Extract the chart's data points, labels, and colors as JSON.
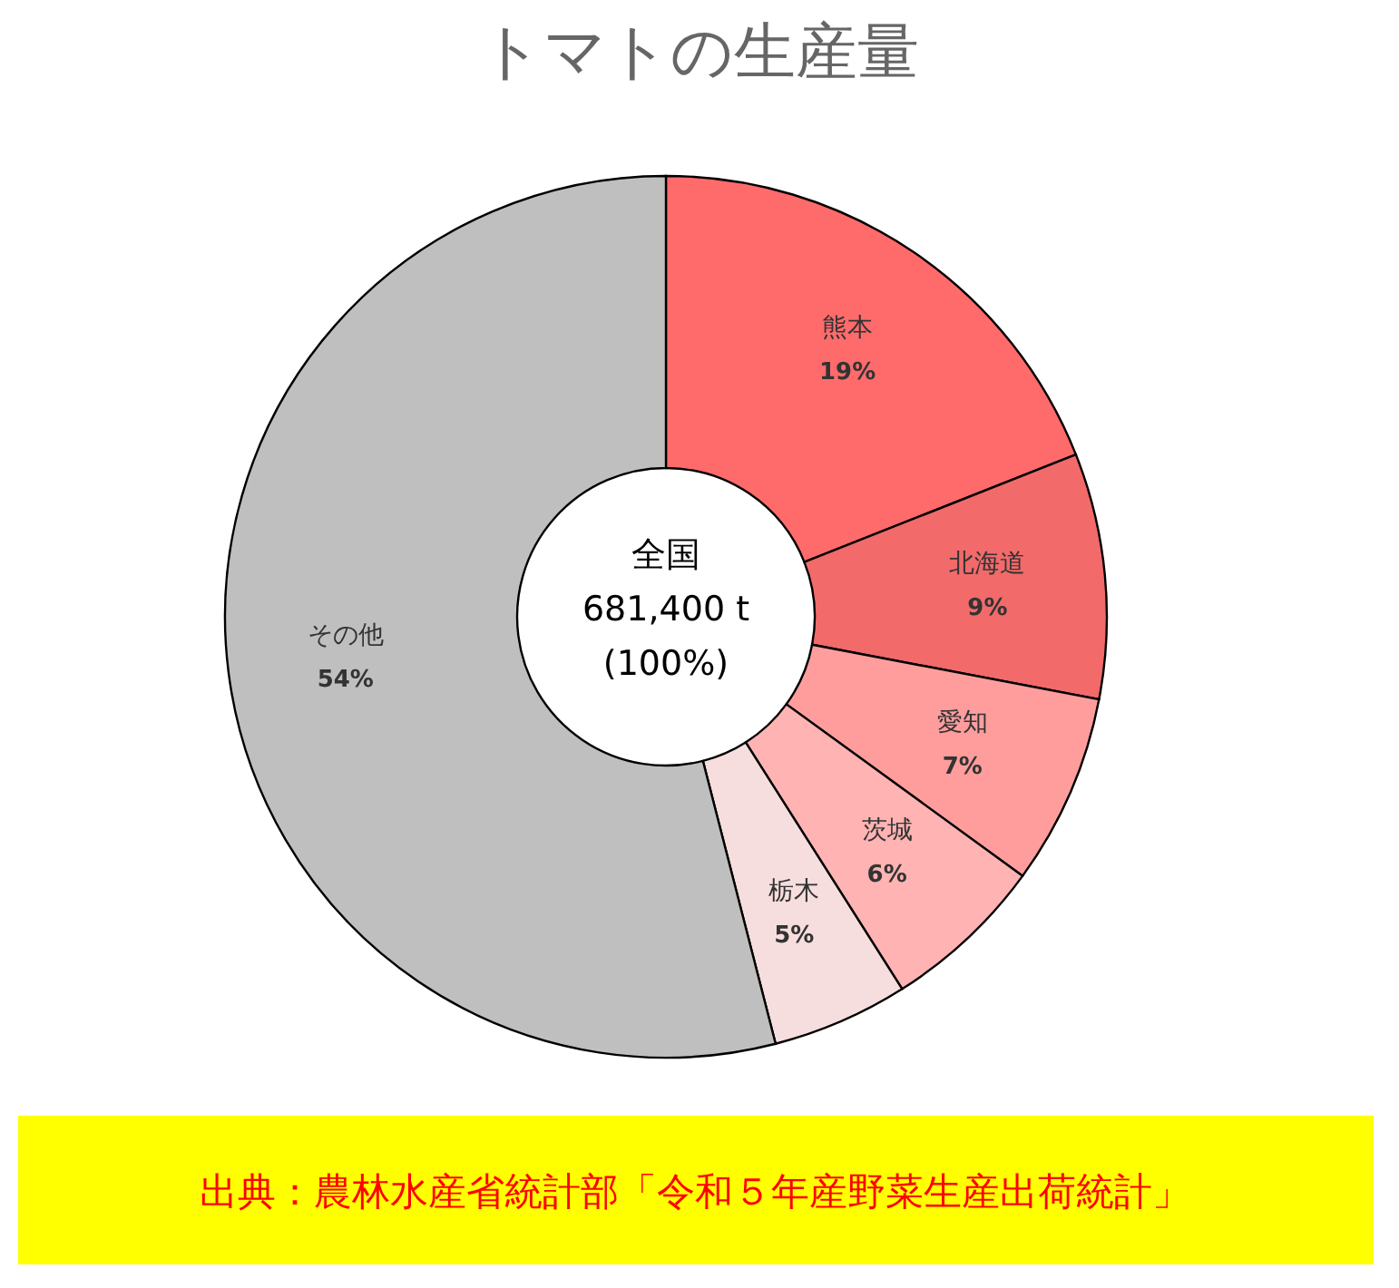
{
  "chart_data": {
    "type": "donut",
    "title": "トマトの生産量",
    "categories": [
      "熊本",
      "北海道",
      "愛知",
      "茨城",
      "栃木",
      "その他"
    ],
    "values": [
      19,
      9,
      7,
      6,
      5,
      54
    ],
    "colors": [
      "#ff6b6b",
      "#f26a6a",
      "#ff9d9d",
      "#ffb3b3",
      "#f7dede",
      "#bfbfbf"
    ],
    "value_labels": [
      "19%",
      "9%",
      "7%",
      "6%",
      "5%",
      "54%"
    ],
    "legend": false,
    "annotations": [
      "全国\n681,400 t\n(100%)",
      "出典：農林水産省統計部「令和５年産野菜生産出荷統計」"
    ]
  }
}
